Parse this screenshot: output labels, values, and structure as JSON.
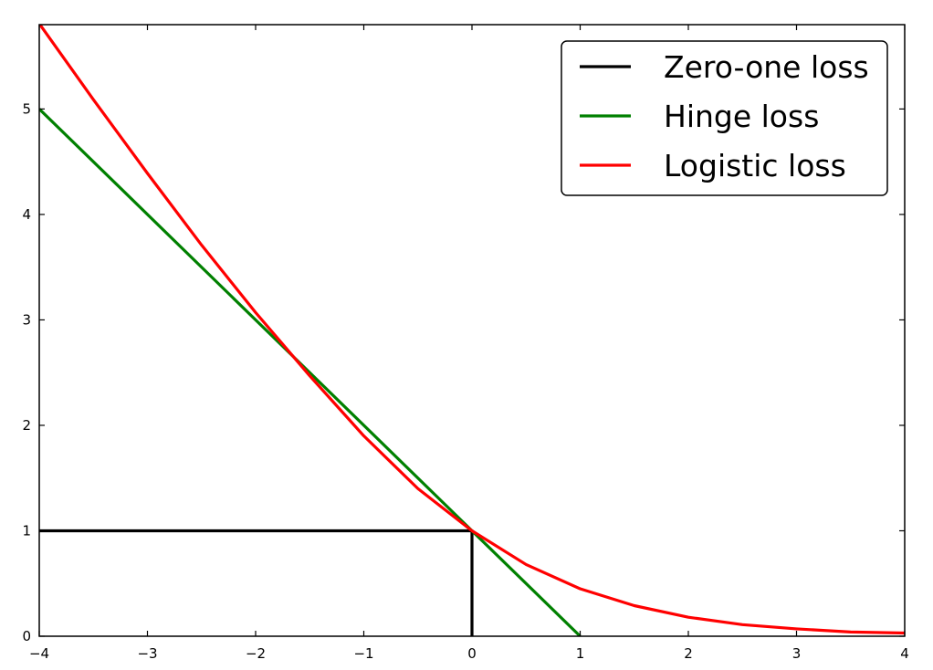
{
  "chart_data": {
    "type": "line",
    "xlim": [
      -4,
      4
    ],
    "ylim": [
      0,
      5.8
    ],
    "x_ticks": [
      -4,
      -3,
      -2,
      -1,
      0,
      1,
      2,
      3,
      4
    ],
    "x_tick_labels": [
      "−4",
      "−3",
      "−2",
      "−1",
      "0",
      "1",
      "2",
      "3",
      "4"
    ],
    "y_ticks": [
      0,
      1,
      2,
      3,
      4,
      5
    ],
    "y_tick_labels": [
      "0",
      "1",
      "2",
      "3",
      "4",
      "5"
    ],
    "grid": false,
    "legend_position": "top-right",
    "series": [
      {
        "name": "Zero-one loss",
        "color": "#000000",
        "x": [
          -4,
          0,
          0
        ],
        "y": [
          1,
          1,
          0
        ]
      },
      {
        "name": "Hinge loss",
        "color": "#008000",
        "x": [
          -4,
          1
        ],
        "y": [
          5,
          0
        ]
      },
      {
        "name": "Logistic loss",
        "color": "#ff0000",
        "x": [
          -4,
          -3.5,
          -3,
          -2.5,
          -2,
          -1.5,
          -1,
          -0.5,
          0,
          0.5,
          1,
          1.5,
          2,
          2.5,
          3,
          3.5,
          4
        ],
        "y": [
          5.81,
          5.09,
          4.39,
          3.71,
          3.07,
          2.47,
          1.9,
          1.4,
          1.0,
          0.68,
          0.45,
          0.29,
          0.18,
          0.11,
          0.07,
          0.04,
          0.03
        ]
      }
    ]
  }
}
